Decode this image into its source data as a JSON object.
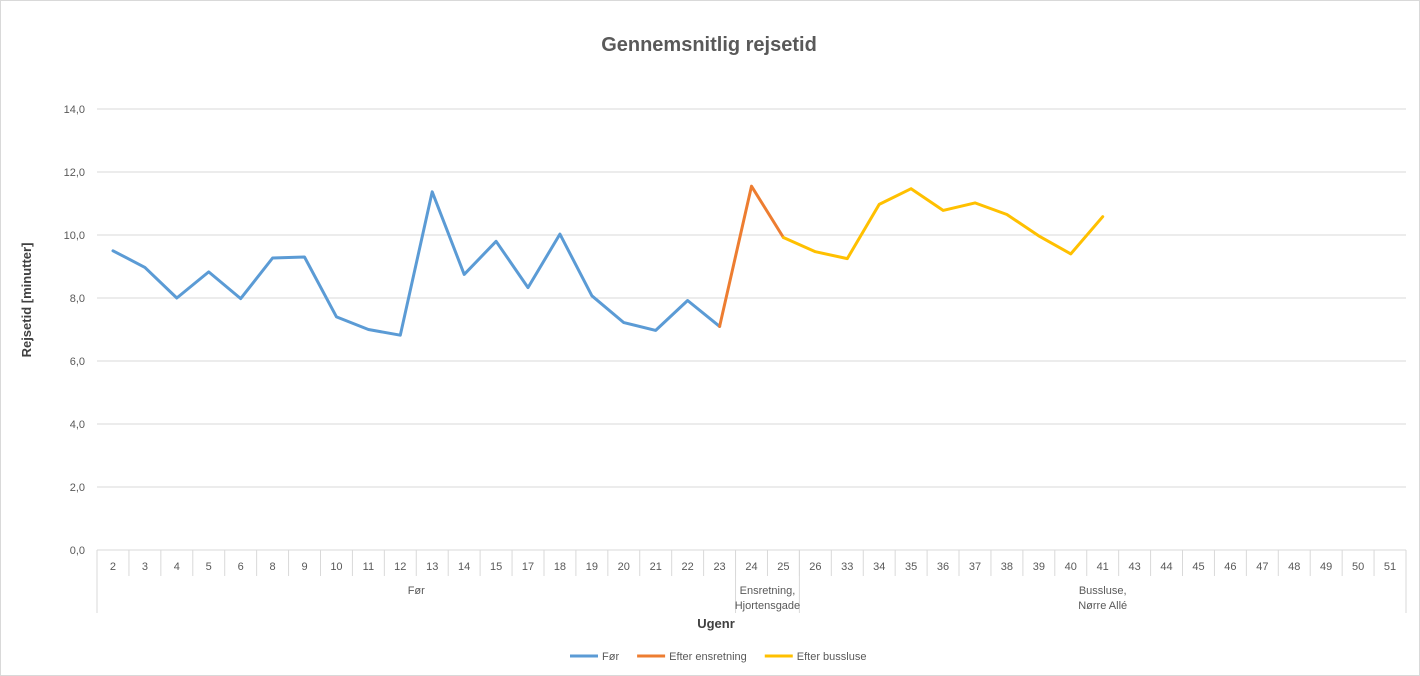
{
  "chart_data": {
    "type": "line",
    "title": "Gennemsnitlig rejsetid",
    "xlabel": "Ugenr",
    "ylabel": "Rejsetid [minutter]",
    "ylim": [
      0,
      14
    ],
    "yticks": [
      "0,0",
      "2,0",
      "4,0",
      "6,0",
      "8,0",
      "10,0",
      "12,0",
      "14,0"
    ],
    "grid": true,
    "legend_position": "bottom",
    "categories": [
      "2",
      "3",
      "4",
      "5",
      "6",
      "8",
      "9",
      "10",
      "11",
      "12",
      "13",
      "14",
      "15",
      "17",
      "18",
      "19",
      "20",
      "21",
      "22",
      "23",
      "24",
      "25",
      "26",
      "33",
      "34",
      "35",
      "36",
      "37",
      "38",
      "39",
      "40",
      "41",
      "43",
      "44",
      "45",
      "46",
      "47",
      "48",
      "49",
      "50",
      "51"
    ],
    "groups": [
      {
        "label_lines": [
          "Før"
        ],
        "start": 0,
        "end": 19
      },
      {
        "label_lines": [
          "Ensretning,",
          "Hjortensgade"
        ],
        "start": 20,
        "end": 21
      },
      {
        "label_lines": [
          "Bussluse,",
          "Nørre Allé"
        ],
        "start": 22,
        "end": 40
      }
    ],
    "series": [
      {
        "name": "Før",
        "color": "#5B9BD5",
        "values": [
          9.5,
          8.97,
          8.0,
          8.83,
          7.98,
          9.27,
          9.3,
          7.4,
          7.0,
          6.82,
          11.37,
          8.75,
          9.8,
          8.33,
          10.03,
          8.07,
          7.22,
          6.97,
          7.92,
          7.1,
          null,
          null,
          null,
          null,
          null,
          null,
          null,
          null,
          null,
          null,
          null,
          null,
          null,
          null,
          null,
          null,
          null,
          null,
          null,
          null,
          null
        ]
      },
      {
        "name": "Efter ensretning",
        "color": "#ED7D31",
        "values": [
          null,
          null,
          null,
          null,
          null,
          null,
          null,
          null,
          null,
          null,
          null,
          null,
          null,
          null,
          null,
          null,
          null,
          null,
          null,
          7.1,
          11.55,
          9.92,
          null,
          null,
          null,
          null,
          null,
          null,
          null,
          null,
          null,
          null,
          null,
          null,
          null,
          null,
          null,
          null,
          null,
          null,
          null
        ]
      },
      {
        "name": "Efter bussluse",
        "color": "#FFC000",
        "values": [
          null,
          null,
          null,
          null,
          null,
          null,
          null,
          null,
          null,
          null,
          null,
          null,
          null,
          null,
          null,
          null,
          null,
          null,
          null,
          null,
          null,
          9.92,
          9.47,
          9.25,
          10.97,
          11.47,
          10.78,
          11.02,
          10.65,
          9.97,
          9.4,
          10.58,
          null,
          null,
          null,
          null,
          null,
          null,
          null,
          null,
          null
        ]
      }
    ]
  }
}
